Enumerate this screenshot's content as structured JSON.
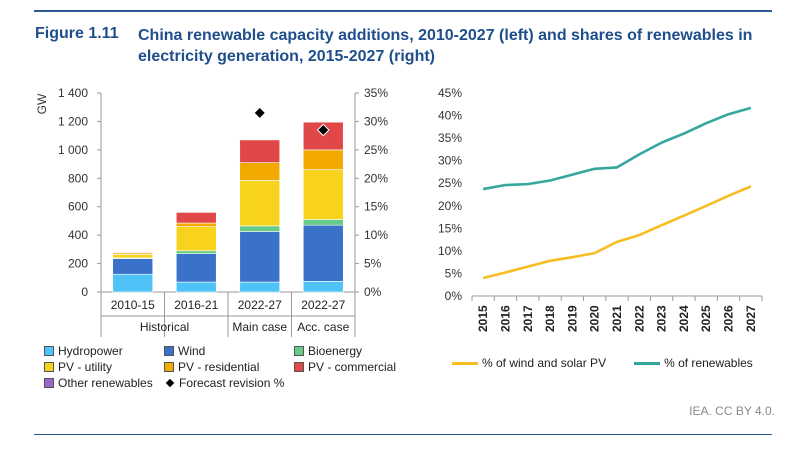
{
  "figure": {
    "label": "Figure 1.11",
    "title": "China renewable capacity additions, 2010-2027 (left) and shares of renewables in electricity generation, 2015-2027 (right)",
    "credit": "IEA. CC BY 4.0."
  },
  "chart_data": [
    {
      "type": "bar",
      "stacked": true,
      "ylabel": "GW",
      "ylim": [
        0,
        1400
      ],
      "yticks": [
        "0",
        "200",
        "400",
        "600",
        "800",
        "1 000",
        "1 200",
        "1 400"
      ],
      "y2lim": [
        0,
        35
      ],
      "y2ticks": [
        "0%",
        "5%",
        "10%",
        "15%",
        "20%",
        "25%",
        "30%",
        "35%"
      ],
      "categories": [
        "2010-15",
        "2016-21",
        "2022-27",
        "2022-27"
      ],
      "groups": [
        {
          "label": "Historical",
          "span": 2
        },
        {
          "label": "Main case",
          "span": 1
        },
        {
          "label": "Acc. case",
          "span": 1
        }
      ],
      "series": [
        {
          "name": "Hydropower",
          "color": "#4fc3f7",
          "values": [
            125,
            70,
            70,
            75
          ]
        },
        {
          "name": "Wind",
          "color": "#3a72c9",
          "values": [
            110,
            200,
            355,
            395
          ]
        },
        {
          "name": "Bioenergy",
          "color": "#66cc88",
          "values": [
            5,
            20,
            40,
            40
          ]
        },
        {
          "name": "PV - utility",
          "color": "#f7d31e",
          "values": [
            25,
            170,
            320,
            350
          ]
        },
        {
          "name": "PV - residential",
          "color": "#f2a900",
          "values": [
            10,
            25,
            125,
            140
          ]
        },
        {
          "name": "PV - commercial",
          "color": "#e04848",
          "values": [
            5,
            75,
            160,
            195
          ]
        },
        {
          "name": "Other renewables",
          "color": "#9966cc",
          "values": [
            0,
            0,
            0,
            0
          ]
        }
      ],
      "forecast_revision": {
        "name": "Forecast revision %",
        "values": [
          null,
          null,
          31.5,
          28.5
        ]
      }
    },
    {
      "type": "line",
      "x": [
        2015,
        2016,
        2017,
        2018,
        2019,
        2020,
        2021,
        2022,
        2023,
        2024,
        2025,
        2026,
        2027
      ],
      "ylim": [
        0,
        45
      ],
      "yticks": [
        "0%",
        "5%",
        "10%",
        "15%",
        "20%",
        "25%",
        "30%",
        "35%",
        "40%",
        "45%"
      ],
      "series": [
        {
          "name": "% of wind and solar PV",
          "color": "#f7bd22",
          "values": [
            4.0,
            5.2,
            6.5,
            7.8,
            8.6,
            9.5,
            12.0,
            13.5,
            15.7,
            17.8,
            20.0,
            22.2,
            24.3
          ]
        },
        {
          "name": "% of renewables",
          "color": "#35a79c",
          "values": [
            23.7,
            24.6,
            24.8,
            25.6,
            26.9,
            28.2,
            28.5,
            31.4,
            34.0,
            36.0,
            38.3,
            40.3,
            41.7
          ]
        }
      ]
    }
  ]
}
